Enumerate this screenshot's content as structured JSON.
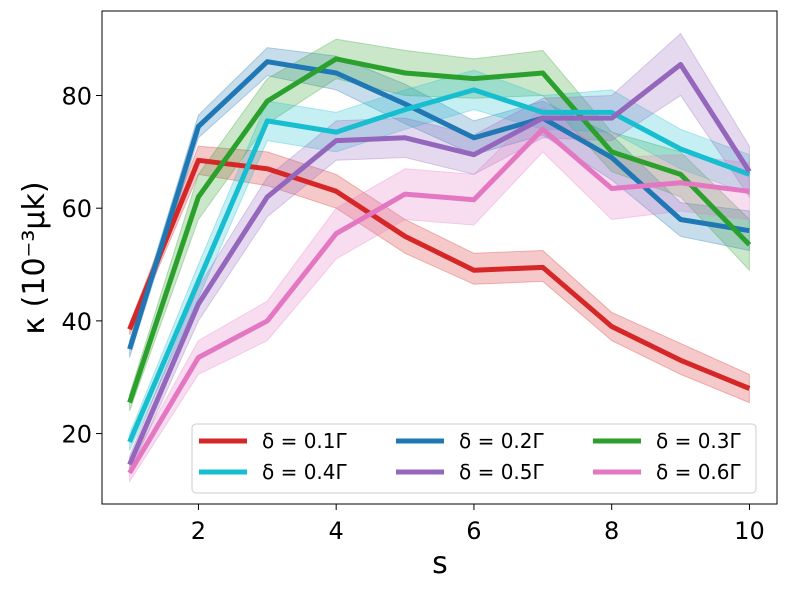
{
  "chart_data": {
    "type": "line",
    "title": "",
    "xlabel": "s",
    "ylabel": "κ (10⁻³μk)",
    "xlim": [
      0.6,
      10.4
    ],
    "ylim": [
      7.5,
      95.0
    ],
    "xticks": [
      2,
      4,
      6,
      8,
      10
    ],
    "xtick_labels": [
      "2",
      "4",
      "6",
      "8",
      "10"
    ],
    "yticks": [
      20,
      40,
      60,
      80
    ],
    "ytick_labels": [
      "20",
      "40",
      "60",
      "80"
    ],
    "grid": false,
    "legend_position": "lower-right",
    "legend_columns": 3,
    "x": [
      1,
      2,
      3,
      4,
      5,
      6,
      7,
      8,
      9,
      10
    ],
    "series": [
      {
        "name": "δ = 0.1Γ",
        "color": "#d62728",
        "values": [
          38.5,
          68.5,
          67.0,
          63.0,
          55.0,
          49.0,
          49.5,
          39.0,
          33.0,
          28.0
        ],
        "lower": [
          37.5,
          66.0,
          64.0,
          60.0,
          52.0,
          46.5,
          47.0,
          36.5,
          30.5,
          25.5
        ],
        "upper": [
          39.5,
          71.0,
          70.0,
          66.0,
          58.0,
          52.0,
          52.5,
          41.5,
          36.0,
          30.5
        ]
      },
      {
        "name": "δ = 0.2Γ",
        "color": "#1f77b4",
        "values": [
          35.0,
          74.5,
          86.0,
          84.0,
          78.5,
          72.5,
          76.0,
          69.0,
          58.0,
          56.0
        ],
        "lower": [
          33.5,
          72.5,
          83.5,
          81.0,
          75.0,
          69.5,
          73.0,
          65.0,
          55.0,
          52.5
        ],
        "upper": [
          36.5,
          76.5,
          88.5,
          87.0,
          82.0,
          75.5,
          79.0,
          73.0,
          61.0,
          59.5
        ]
      },
      {
        "name": "δ = 0.3Γ",
        "color": "#2ca02c",
        "values": [
          25.5,
          62.0,
          79.0,
          86.5,
          84.0,
          83.0,
          84.0,
          70.0,
          66.0,
          53.5
        ],
        "lower": [
          24.0,
          58.0,
          75.0,
          83.0,
          80.0,
          79.5,
          80.0,
          66.5,
          62.0,
          49.0
        ],
        "upper": [
          27.0,
          66.0,
          83.0,
          90.0,
          88.0,
          86.5,
          88.0,
          73.5,
          70.0,
          58.0
        ]
      },
      {
        "name": "δ = 0.4Γ",
        "color": "#17becf",
        "values": [
          18.5,
          47.0,
          75.5,
          73.5,
          77.5,
          81.0,
          77.0,
          77.0,
          70.5,
          66.0
        ],
        "lower": [
          17.0,
          44.0,
          72.0,
          70.0,
          74.0,
          77.5,
          74.0,
          73.5,
          67.0,
          62.5
        ],
        "upper": [
          20.0,
          50.0,
          79.0,
          77.0,
          81.0,
          84.5,
          80.0,
          81.0,
          74.0,
          69.5
        ]
      },
      {
        "name": "δ = 0.5Γ",
        "color": "#9467bd",
        "values": [
          14.5,
          43.0,
          62.0,
          72.0,
          72.5,
          69.5,
          76.0,
          76.0,
          85.5,
          66.5
        ],
        "lower": [
          13.0,
          40.0,
          58.5,
          68.5,
          69.0,
          66.0,
          72.5,
          72.0,
          80.0,
          62.0
        ],
        "upper": [
          16.0,
          46.0,
          65.5,
          75.5,
          76.0,
          73.0,
          79.5,
          80.0,
          91.0,
          71.0
        ]
      },
      {
        "name": "δ = 0.6Γ",
        "color": "#e377c2",
        "values": [
          13.0,
          33.5,
          40.0,
          55.5,
          62.5,
          61.5,
          74.0,
          63.5,
          64.5,
          63.0
        ],
        "lower": [
          11.5,
          30.5,
          36.5,
          51.0,
          58.0,
          57.0,
          70.0,
          58.0,
          59.5,
          58.0
        ],
        "upper": [
          14.5,
          36.5,
          43.5,
          60.0,
          67.0,
          66.0,
          78.0,
          69.0,
          69.5,
          68.0
        ]
      }
    ]
  }
}
